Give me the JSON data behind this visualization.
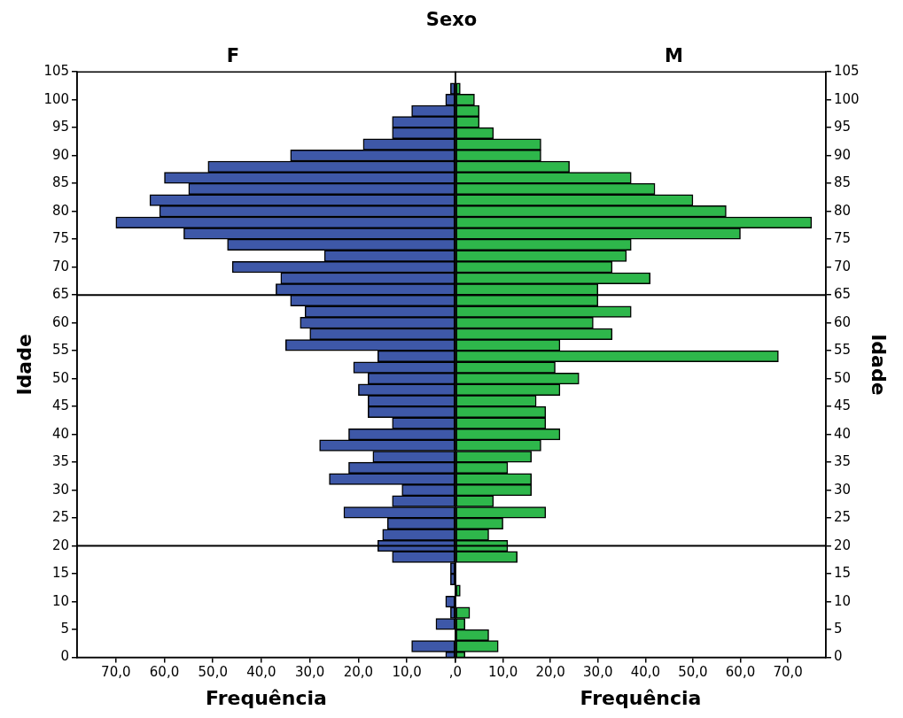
{
  "chart_data": [
    {
      "type": "bar",
      "orientation": "horizontal",
      "title": "Sexo",
      "subtitle": "F",
      "xlabel": "Frequência",
      "ylabel": "Idade",
      "x": [
        0,
        2,
        4,
        6,
        8,
        10,
        12,
        14,
        16,
        18,
        20,
        22,
        24,
        26,
        28,
        30,
        32,
        34,
        36,
        38,
        40,
        42,
        44,
        46,
        48,
        50,
        52,
        54,
        56,
        58,
        60,
        62,
        64,
        66,
        68,
        70,
        72,
        74,
        76,
        78,
        80,
        82,
        84,
        86,
        88,
        90,
        92,
        94,
        96,
        98,
        100,
        102
      ],
      "series": [
        {
          "color": "#3e58a8",
          "values": [
            2,
            9,
            0,
            4,
            1,
            2,
            0,
            1,
            1,
            13,
            16,
            15,
            14,
            23,
            13,
            11,
            26,
            22,
            17,
            28,
            22,
            13,
            18,
            18,
            20,
            18,
            21,
            16,
            35,
            30,
            32,
            31,
            34,
            37,
            36,
            46,
            27,
            47,
            56,
            70,
            61,
            63,
            55,
            60,
            51,
            34,
            19,
            13,
            13,
            9,
            2,
            1
          ]
        }
      ],
      "xlim": [
        78,
        0
      ],
      "xticks": [
        {
          "value": 70,
          "label": "70,0"
        },
        {
          "value": 60,
          "label": "60,0"
        },
        {
          "value": 50,
          "label": "50,0"
        },
        {
          "value": 40,
          "label": "40,0"
        },
        {
          "value": 30,
          "label": "30,0"
        },
        {
          "value": 20,
          "label": "20,0"
        },
        {
          "value": 10,
          "label": "10,0"
        },
        {
          "value": 0,
          "label": ",0"
        }
      ],
      "ylim": [
        0,
        105
      ],
      "yticks": [
        0,
        5,
        10,
        15,
        20,
        25,
        30,
        35,
        40,
        45,
        50,
        55,
        60,
        65,
        70,
        75,
        80,
        85,
        90,
        95,
        100,
        105
      ],
      "ref_lines": [
        {
          "axis": "y",
          "value": 65
        },
        {
          "axis": "y",
          "value": 20
        }
      ]
    },
    {
      "type": "bar",
      "orientation": "horizontal",
      "subtitle": "M",
      "xlabel": "Frequência",
      "ylabel": "Idade",
      "x": [
        0,
        2,
        4,
        6,
        8,
        10,
        12,
        14,
        16,
        18,
        20,
        22,
        24,
        26,
        28,
        30,
        32,
        34,
        36,
        38,
        40,
        42,
        44,
        46,
        48,
        50,
        52,
        54,
        56,
        58,
        60,
        62,
        64,
        66,
        68,
        70,
        72,
        74,
        76,
        78,
        80,
        82,
        84,
        86,
        88,
        90,
        92,
        94,
        96,
        98,
        100,
        102
      ],
      "series": [
        {
          "color": "#2eb74b",
          "values": [
            2,
            9,
            7,
            2,
            3,
            0,
            1,
            0,
            0,
            13,
            11,
            7,
            10,
            19,
            8,
            16,
            16,
            11,
            16,
            18,
            22,
            19,
            19,
            17,
            22,
            26,
            21,
            68,
            22,
            33,
            29,
            37,
            30,
            30,
            41,
            33,
            36,
            37,
            60,
            75,
            57,
            50,
            42,
            37,
            24,
            18,
            18,
            8,
            5,
            5,
            4,
            1
          ]
        }
      ],
      "xlim": [
        0,
        78
      ],
      "xticks": [
        {
          "value": 0,
          "label": null
        },
        {
          "value": 10,
          "label": "10,0"
        },
        {
          "value": 20,
          "label": "20,0"
        },
        {
          "value": 30,
          "label": "30,0"
        },
        {
          "value": 40,
          "label": "40,0"
        },
        {
          "value": 50,
          "label": "50,0"
        },
        {
          "value": 60,
          "label": "60,0"
        },
        {
          "value": 70,
          "label": "70,0"
        }
      ],
      "ylim": [
        0,
        105
      ],
      "yticks": [
        0,
        5,
        10,
        15,
        20,
        25,
        30,
        35,
        40,
        45,
        50,
        55,
        60,
        65,
        70,
        75,
        80,
        85,
        90,
        95,
        100,
        105
      ],
      "ref_lines": [
        {
          "axis": "y",
          "value": 65
        },
        {
          "axis": "y",
          "value": 20
        }
      ]
    }
  ]
}
